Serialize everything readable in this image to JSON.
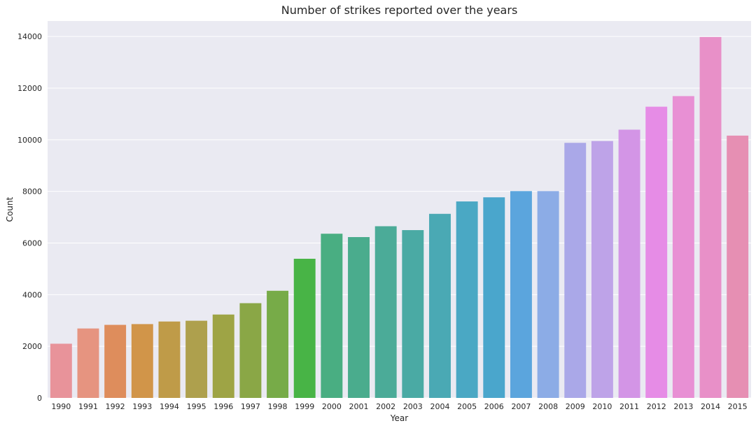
{
  "chart_data": {
    "type": "bar",
    "title": "Number of strikes reported over the years",
    "xlabel": "Year",
    "ylabel": "Count",
    "categories": [
      "1990",
      "1991",
      "1992",
      "1993",
      "1994",
      "1995",
      "1996",
      "1997",
      "1998",
      "1999",
      "2000",
      "2001",
      "2002",
      "2003",
      "2004",
      "2005",
      "2006",
      "2007",
      "2008",
      "2009",
      "2010",
      "2011",
      "2012",
      "2013",
      "2014",
      "2015"
    ],
    "values": [
      2100,
      2690,
      2830,
      2860,
      2960,
      2990,
      3230,
      3670,
      4150,
      5390,
      6360,
      6230,
      6650,
      6500,
      7130,
      7610,
      7770,
      8010,
      8010,
      9880,
      9950,
      10390,
      11280,
      11690,
      13980,
      10160
    ],
    "colors": [
      "#e8939a",
      "#e69480",
      "#de8d5c",
      "#d19549",
      "#bf9b48",
      "#aea04d",
      "#9ea445",
      "#8aa746",
      "#77ab48",
      "#48b446",
      "#49ae82",
      "#4aac8d",
      "#4bab98",
      "#4aaaa4",
      "#4aa9b4",
      "#4aa8c4",
      "#4aa6cc",
      "#5ba5dd",
      "#8cace6",
      "#aaa8e8",
      "#bea3e8",
      "#d395e6",
      "#e68ce6",
      "#e890d4",
      "#e890c8",
      "#e68fb3"
    ],
    "ylim": [
      0,
      14600
    ],
    "yticks": [
      0,
      2000,
      4000,
      6000,
      8000,
      10000,
      12000,
      14000
    ],
    "grid": true,
    "background": "#eaeaf2",
    "grid_color": "#ffffff"
  }
}
